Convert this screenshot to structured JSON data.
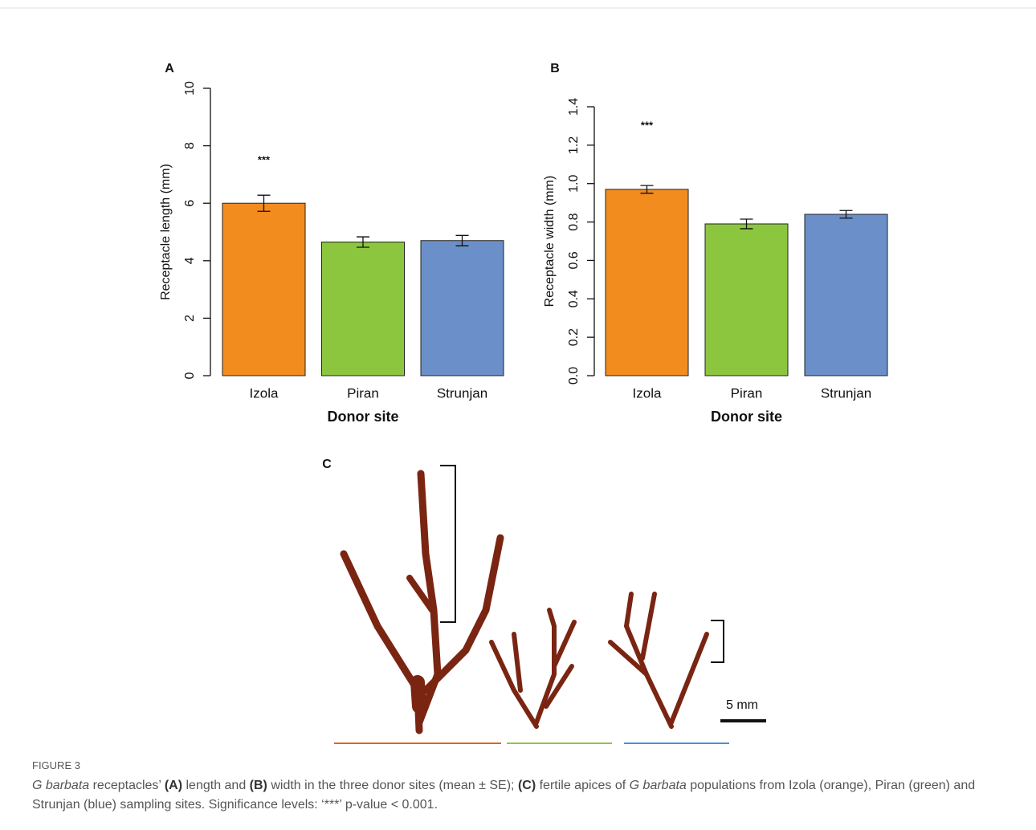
{
  "chart_data": [
    {
      "type": "bar",
      "title": "A",
      "x_label": "Donor site",
      "y_label": "Receptacle length (mm)",
      "categories": [
        "Izola",
        "Piran",
        "Strunjan"
      ],
      "values": [
        6.0,
        4.65,
        4.7
      ],
      "errors": [
        0.28,
        0.18,
        0.18
      ],
      "colors": [
        "#f28c1f",
        "#8cc63f",
        "#6b8fc9"
      ],
      "significance": [
        "***",
        null,
        null
      ],
      "ylim": [
        0,
        10
      ],
      "yticks": [
        0,
        2,
        4,
        6,
        8,
        10
      ]
    },
    {
      "type": "bar",
      "title": "B",
      "x_label": "Donor site",
      "y_label": "Receptacle width (mm)",
      "categories": [
        "Izola",
        "Piran",
        "Strunjan"
      ],
      "values": [
        0.97,
        0.79,
        0.84
      ],
      "errors": [
        0.02,
        0.025,
        0.02
      ],
      "colors": [
        "#f28c1f",
        "#8cc63f",
        "#6b8fc9"
      ],
      "significance": [
        "***",
        null,
        null
      ],
      "ylim": [
        0,
        1.4
      ],
      "yticks": [
        {
          "value": 0,
          "label": "0.0"
        },
        0.2,
        0.4,
        0.6,
        0.8,
        {
          "value": 1,
          "label": "1.0"
        },
        1.2,
        1.4
      ]
    }
  ],
  "panel_c": {
    "label": "C",
    "scale_label": "5 mm"
  },
  "caption": {
    "figure_label": "FIGURE 3",
    "segments": [
      {
        "text": "G barbata",
        "style": "italic"
      },
      {
        "text": " receptacles’ ",
        "style": "normal"
      },
      {
        "text": "(A)",
        "style": "bold"
      },
      {
        "text": " length and ",
        "style": "normal"
      },
      {
        "text": "(B)",
        "style": "bold"
      },
      {
        "text": " width in the three donor sites (mean ± SE); ",
        "style": "normal"
      },
      {
        "text": "(C)",
        "style": "bold"
      },
      {
        "text": " fertile apices of ",
        "style": "normal"
      },
      {
        "text": "G barbata",
        "style": "italic"
      },
      {
        "text": " populations from Izola (orange), Piran (green) and Strunjan (blue) sampling sites. Significance levels: ‘***’ p-value < 0.001.",
        "style": "normal"
      }
    ]
  }
}
